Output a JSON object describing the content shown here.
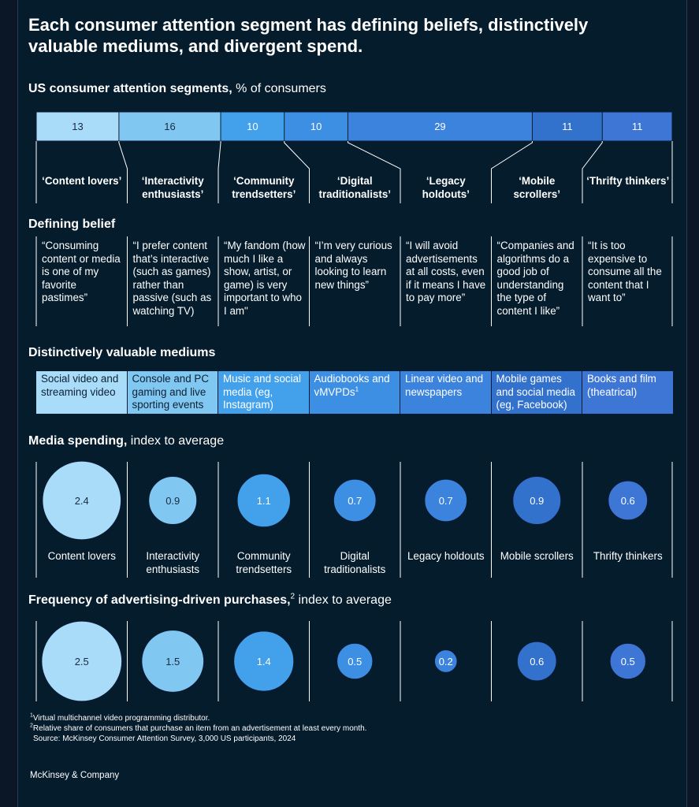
{
  "title": "Each consumer attention segment has defining beliefs, distinctively valuable mediums, and divergent spend.",
  "sections": {
    "segments_title_bold": "US consumer attention segments,",
    "segments_title_rest": " % of consumers",
    "belief_title": "Defining belief",
    "mediums_title": "Distinctively valuable mediums",
    "spending_title_bold": "Media spending,",
    "spending_title_rest": " index to average",
    "purchases_title_bold": "Frequency of advertising-driven purchases,",
    "purchases_title_sup": "2",
    "purchases_title_rest": " index to average"
  },
  "segments": [
    {
      "name": "‘Content lovers’",
      "label": "Content lovers",
      "belief": "“Consuming content or media is one of my favorite pastimes”",
      "medium": "Social video and streaming video"
    },
    {
      "name": "‘Interactivity enthusiasts’",
      "label": "Interactivity enthusiasts",
      "belief": "“I prefer content that’s interactive (such as games) rather than passive (such as watching TV)",
      "medium": "Console and PC gaming and live sporting events"
    },
    {
      "name": "‘Community trendsetters’",
      "label": "Community trendsetters",
      "belief": "“My fandom (how much I like a show, artist, or game) is very important to who I am\"",
      "medium": "Music and social media (eg, Instagram)"
    },
    {
      "name": "‘Digital traditionalists’",
      "label": "Digital traditionalists",
      "belief": "“I’m very curious and always looking to learn new things”",
      "medium": "Audiobooks and vMVPDs",
      "medium_sup": "1"
    },
    {
      "name": "‘Legacy holdouts’",
      "label": "Legacy holdouts",
      "belief": "“I will avoid advertisements at all costs, even if it means I have to pay more”",
      "medium": "Linear video and newspapers"
    },
    {
      "name": "‘Mobile scrollers’",
      "label": "Mobile scrollers",
      "belief": "“Companies and algorithms do a good job of understanding the type of content I like”",
      "medium": "Mobile games and social media (eg, Facebook)"
    },
    {
      "name": "‘Thrifty thinkers’",
      "label": "Thrifty thinkers",
      "belief": "“It is too expensive to consume all the content that I want to”",
      "medium": "Books and film (theatrical)"
    }
  ],
  "chart_data": [
    {
      "type": "bar",
      "title": "US consumer attention segments, % of consumers",
      "orientation": "horizontal-stacked",
      "categories": [
        "Content lovers",
        "Interactivity enthusiasts",
        "Community trendsetters",
        "Digital traditionalists",
        "Legacy holdouts",
        "Mobile scrollers",
        "Thrifty thinkers"
      ],
      "values": [
        13,
        16,
        10,
        10,
        29,
        11,
        11
      ]
    },
    {
      "type": "scatter",
      "title": "Media spending, index to average",
      "encoding": "bubble-area",
      "categories": [
        "Content lovers",
        "Interactivity enthusiasts",
        "Community trendsetters",
        "Digital traditionalists",
        "Legacy holdouts",
        "Mobile scrollers",
        "Thrifty thinkers"
      ],
      "values": [
        2.4,
        0.9,
        1.1,
        0.7,
        0.7,
        0.9,
        0.6
      ]
    },
    {
      "type": "scatter",
      "title": "Frequency of advertising-driven purchases, index to average",
      "encoding": "bubble-area",
      "categories": [
        "Content lovers",
        "Interactivity enthusiasts",
        "Community trendsetters",
        "Digital traditionalists",
        "Legacy holdouts",
        "Mobile scrollers",
        "Thrifty thinkers"
      ],
      "values": [
        2.5,
        1.5,
        1.4,
        0.5,
        0.2,
        0.6,
        0.5
      ]
    }
  ],
  "colors": {
    "background": "#051c2c",
    "segments": [
      "#a8dcf9",
      "#80c8f1",
      "#43a1ec",
      "#3d8fe3",
      "#3b83dc",
      "#3271cc",
      "#3d76d4"
    ],
    "outline": "#0b1a33",
    "divider": "#ffffff"
  },
  "footnotes": {
    "note1_sup": "1",
    "note1": "Virtual multichannel video programming distributor.",
    "note2_sup": "2",
    "note2": "Relative share of consumers that purchase an item from an advertisement at least every month.",
    "source": "Source: McKinsey Consumer Attention Survey, 3,000 US participants, 2024"
  },
  "brand": "McKinsey & Company"
}
